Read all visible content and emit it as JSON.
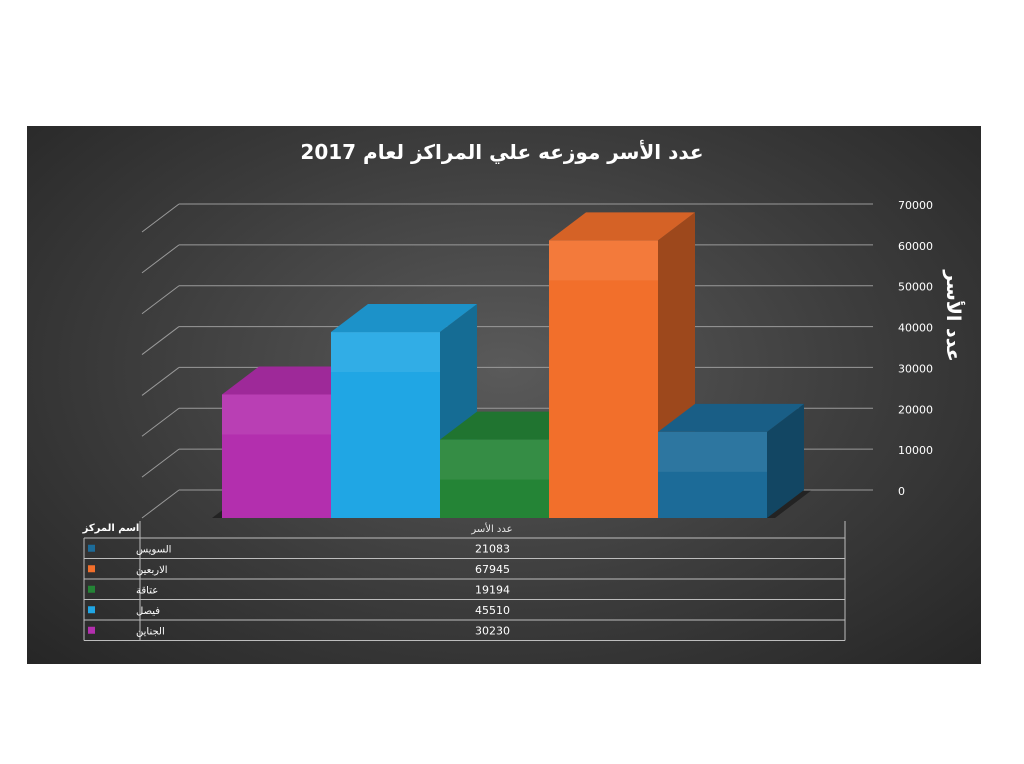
{
  "chart_data": {
    "type": "bar",
    "title": "عدد الأسر موزعه علي المراكز لعام 2017",
    "ylabel": "عدد الأسر",
    "ylim": [
      0,
      70000
    ],
    "yticks": [
      0,
      10000,
      20000,
      30000,
      40000,
      50000,
      60000,
      70000
    ],
    "grid": true,
    "three_d": true,
    "table": {
      "corner_label": "اسم المركز",
      "column_header": "عدد الأسر"
    },
    "series": [
      {
        "name": "الجناين",
        "value": 30230,
        "color": "#b32fae"
      },
      {
        "name": "فيصل",
        "value": 45510,
        "color": "#20a6e4"
      },
      {
        "name": "عتاقة",
        "value": 19194,
        "color": "#248436"
      },
      {
        "name": "الاربعين",
        "value": 67945,
        "color": "#f26f2b"
      },
      {
        "name": "السويس",
        "value": 21083,
        "color": "#1c6b98"
      }
    ],
    "table_row_order": [
      "السويس",
      "الاربعين",
      "عتاقة",
      "فيصل",
      "الجناين"
    ]
  }
}
